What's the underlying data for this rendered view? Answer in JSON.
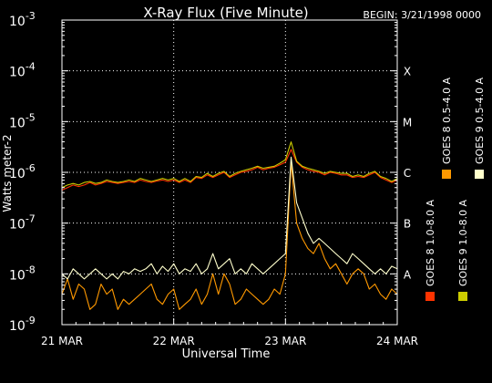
{
  "chart_data": {
    "type": "line",
    "title": "X-Ray Flux (Five Minute)",
    "begin_label": "BEGIN: 3/21/1998 0000",
    "xlabel": "Universal Time",
    "ylabel": "Watts meter-2",
    "x_unit": "days since 1998-03-21 00:00 UT",
    "xlim": [
      0,
      3
    ],
    "x_ticks": [
      {
        "v": 0,
        "label": "21 MAR"
      },
      {
        "v": 1,
        "label": "22 MAR"
      },
      {
        "v": 2,
        "label": "23 MAR"
      },
      {
        "v": 3,
        "label": "24 MAR"
      }
    ],
    "y_scale": "log",
    "ylim_exp": [
      -9,
      -3
    ],
    "y_ticks": [
      {
        "exp": -9,
        "base": "10",
        "sup": "-9"
      },
      {
        "exp": -8,
        "base": "10",
        "sup": "-8"
      },
      {
        "exp": -7,
        "base": "10",
        "sup": "-7"
      },
      {
        "exp": -6,
        "base": "10",
        "sup": "-6"
      },
      {
        "exp": -5,
        "base": "10",
        "sup": "-5"
      },
      {
        "exp": -4,
        "base": "10",
        "sup": "-4"
      },
      {
        "exp": -3,
        "base": "10",
        "sup": "-3"
      }
    ],
    "flare_classes": [
      {
        "label": "X",
        "exp": -4
      },
      {
        "label": "M",
        "exp": -5
      },
      {
        "label": "C",
        "exp": -6
      },
      {
        "label": "B",
        "exp": -7
      },
      {
        "label": "A",
        "exp": -8
      }
    ],
    "grid": {
      "horizontal_exp": [
        -8,
        -7,
        -6,
        -5,
        -4
      ],
      "vertical_x": [
        1,
        2
      ],
      "style": "dotted"
    },
    "legend": {
      "placement": "right-vertical",
      "items": [
        {
          "label": "GOES 8 1.0-8.0 A",
          "color": "#ff3300"
        },
        {
          "label": "GOES 8 0.5-4.0 A",
          "color": "#ff9900"
        },
        {
          "label": "GOES 9 1.0-8.0 A",
          "color": "#cccc00"
        },
        {
          "label": "GOES 9 0.5-4.0 A",
          "color": "#ffffcc"
        }
      ]
    },
    "series": [
      {
        "name": "GOES 8 1.0-8.0 A",
        "color": "#ff3300",
        "x": [
          0.0,
          0.05,
          0.1,
          0.15,
          0.2,
          0.25,
          0.3,
          0.35,
          0.4,
          0.45,
          0.5,
          0.55,
          0.6,
          0.65,
          0.7,
          0.75,
          0.8,
          0.85,
          0.9,
          0.95,
          1.0,
          1.05,
          1.1,
          1.15,
          1.2,
          1.25,
          1.3,
          1.35,
          1.4,
          1.45,
          1.5,
          1.55,
          1.6,
          1.65,
          1.7,
          1.75,
          1.8,
          1.85,
          1.9,
          1.95,
          2.0,
          2.05,
          2.1,
          2.15,
          2.2,
          2.25,
          2.3,
          2.35,
          2.4,
          2.45,
          2.5,
          2.55,
          2.6,
          2.65,
          2.7,
          2.75,
          2.8,
          2.85,
          2.9,
          2.95,
          3.0
        ],
        "exp": [
          -6.35,
          -6.3,
          -6.25,
          -6.28,
          -6.25,
          -6.2,
          -6.25,
          -6.22,
          -6.18,
          -6.2,
          -6.22,
          -6.2,
          -6.18,
          -6.2,
          -6.15,
          -6.18,
          -6.2,
          -6.17,
          -6.15,
          -6.18,
          -6.15,
          -6.2,
          -6.15,
          -6.2,
          -6.1,
          -6.12,
          -6.05,
          -6.1,
          -6.05,
          -6.0,
          -6.1,
          -6.05,
          -6.0,
          -5.98,
          -5.95,
          -5.9,
          -5.95,
          -5.92,
          -5.9,
          -5.85,
          -5.8,
          -5.55,
          -5.8,
          -5.9,
          -5.95,
          -5.98,
          -6.0,
          -6.05,
          -6.0,
          -6.02,
          -6.05,
          -6.05,
          -6.1,
          -6.08,
          -6.1,
          -6.05,
          -6.0,
          -6.1,
          -6.15,
          -6.2,
          -6.15
        ]
      },
      {
        "name": "GOES 8 0.5-4.0 A",
        "color": "#ff9900",
        "x": [
          0.0,
          0.05,
          0.1,
          0.15,
          0.2,
          0.25,
          0.3,
          0.35,
          0.4,
          0.45,
          0.5,
          0.55,
          0.6,
          0.65,
          0.7,
          0.75,
          0.8,
          0.85,
          0.9,
          0.95,
          1.0,
          1.05,
          1.1,
          1.15,
          1.2,
          1.25,
          1.3,
          1.35,
          1.4,
          1.45,
          1.5,
          1.55,
          1.6,
          1.65,
          1.7,
          1.75,
          1.8,
          1.85,
          1.9,
          1.95,
          2.0,
          2.05,
          2.1,
          2.15,
          2.2,
          2.25,
          2.3,
          2.35,
          2.4,
          2.45,
          2.5,
          2.55,
          2.6,
          2.65,
          2.7,
          2.75,
          2.8,
          2.85,
          2.9,
          2.95,
          3.0
        ],
        "exp": [
          -8.4,
          -8.1,
          -8.5,
          -8.2,
          -8.3,
          -8.7,
          -8.6,
          -8.2,
          -8.4,
          -8.3,
          -8.7,
          -8.5,
          -8.6,
          -8.5,
          -8.4,
          -8.3,
          -8.2,
          -8.5,
          -8.6,
          -8.4,
          -8.3,
          -8.7,
          -8.6,
          -8.5,
          -8.3,
          -8.6,
          -8.4,
          -8.0,
          -8.4,
          -8.0,
          -8.2,
          -8.6,
          -8.5,
          -8.3,
          -8.4,
          -8.5,
          -8.6,
          -8.5,
          -8.3,
          -8.4,
          -8.0,
          -5.8,
          -7.0,
          -7.3,
          -7.5,
          -7.6,
          -7.4,
          -7.7,
          -7.9,
          -7.8,
          -8.0,
          -8.2,
          -8.0,
          -7.9,
          -8.0,
          -8.3,
          -8.2,
          -8.4,
          -8.5,
          -8.3,
          -8.4
        ]
      },
      {
        "name": "GOES 9 1.0-8.0 A",
        "color": "#cccc00",
        "x": [
          0.0,
          0.05,
          0.1,
          0.15,
          0.2,
          0.25,
          0.3,
          0.35,
          0.4,
          0.45,
          0.5,
          0.55,
          0.6,
          0.65,
          0.7,
          0.75,
          0.8,
          0.85,
          0.9,
          0.95,
          1.0,
          1.05,
          1.1,
          1.15,
          1.2,
          1.25,
          1.3,
          1.35,
          1.4,
          1.45,
          1.5,
          1.55,
          1.6,
          1.65,
          1.7,
          1.75,
          1.8,
          1.85,
          1.9,
          1.95,
          2.0,
          2.05,
          2.1,
          2.15,
          2.2,
          2.25,
          2.3,
          2.35,
          2.4,
          2.45,
          2.5,
          2.55,
          2.6,
          2.65,
          2.7,
          2.75,
          2.8,
          2.85,
          2.9,
          2.95,
          3.0
        ],
        "exp": [
          -6.3,
          -6.25,
          -6.22,
          -6.25,
          -6.2,
          -6.18,
          -6.22,
          -6.2,
          -6.15,
          -6.18,
          -6.2,
          -6.18,
          -6.15,
          -6.18,
          -6.12,
          -6.15,
          -6.18,
          -6.15,
          -6.12,
          -6.15,
          -6.12,
          -6.18,
          -6.12,
          -6.18,
          -6.08,
          -6.1,
          -6.02,
          -6.08,
          -6.02,
          -5.98,
          -6.08,
          -6.02,
          -5.98,
          -5.95,
          -5.92,
          -5.88,
          -5.92,
          -5.9,
          -5.88,
          -5.82,
          -5.75,
          -5.4,
          -5.78,
          -5.88,
          -5.92,
          -5.95,
          -5.98,
          -6.02,
          -5.98,
          -6.0,
          -6.02,
          -6.02,
          -6.08,
          -6.05,
          -6.08,
          -6.02,
          -5.98,
          -6.08,
          -6.12,
          -6.18,
          -6.12
        ]
      },
      {
        "name": "GOES 9 0.5-4.0 A",
        "color": "#ffffcc",
        "x": [
          0.0,
          0.05,
          0.1,
          0.15,
          0.2,
          0.25,
          0.3,
          0.35,
          0.4,
          0.45,
          0.5,
          0.55,
          0.6,
          0.65,
          0.7,
          0.75,
          0.8,
          0.85,
          0.9,
          0.95,
          1.0,
          1.05,
          1.1,
          1.15,
          1.2,
          1.25,
          1.3,
          1.35,
          1.4,
          1.45,
          1.5,
          1.55,
          1.6,
          1.65,
          1.7,
          1.75,
          1.8,
          1.85,
          1.9,
          1.95,
          2.0,
          2.05,
          2.1,
          2.15,
          2.2,
          2.25,
          2.3,
          2.35,
          2.4,
          2.45,
          2.5,
          2.55,
          2.6,
          2.65,
          2.7,
          2.75,
          2.8,
          2.85,
          2.9,
          2.95,
          3.0
        ],
        "exp": [
          -8.0,
          -8.1,
          -7.9,
          -8.0,
          -8.1,
          -8.0,
          -7.9,
          -8.0,
          -8.1,
          -8.0,
          -8.1,
          -7.95,
          -8.0,
          -7.9,
          -7.95,
          -7.9,
          -7.8,
          -8.0,
          -7.85,
          -7.95,
          -7.8,
          -8.0,
          -7.9,
          -7.95,
          -7.8,
          -8.0,
          -7.9,
          -7.6,
          -7.9,
          -7.8,
          -7.7,
          -8.0,
          -7.9,
          -8.0,
          -7.8,
          -7.9,
          -8.0,
          -7.9,
          -7.8,
          -7.7,
          -7.6,
          -5.7,
          -6.6,
          -6.9,
          -7.2,
          -7.4,
          -7.3,
          -7.4,
          -7.5,
          -7.6,
          -7.7,
          -7.8,
          -7.6,
          -7.7,
          -7.8,
          -7.9,
          -8.0,
          -7.9,
          -8.0,
          -7.85,
          -7.9
        ]
      }
    ]
  }
}
